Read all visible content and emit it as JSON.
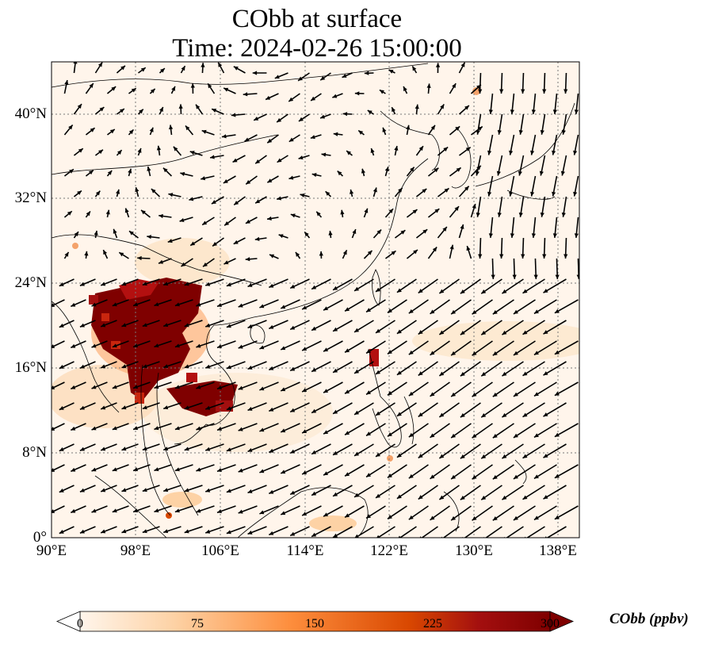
{
  "title_line1": "CObb at surface",
  "title_line2": "Time: 2024-02-26 15:00:00",
  "lon_ticks": [
    "90°E",
    "98°E",
    "106°E",
    "114°E",
    "122°E",
    "130°E",
    "138°E"
  ],
  "lat_ticks": [
    "40°N",
    "32°N",
    "24°N",
    "16°N",
    "8°N",
    "0°"
  ],
  "colorbar": {
    "label": "CObb (ppbv)",
    "ticks": [
      "0",
      "75",
      "150",
      "225",
      "300"
    ],
    "colors": [
      "#fff5eb",
      "#fdd2a5",
      "#fd8d3c",
      "#d94801",
      "#a30f0f",
      "#7f0000"
    ]
  },
  "colors": {
    "background_field": "#fff5eb",
    "hotspot": "#7f0000",
    "arrow": "#000000"
  }
}
